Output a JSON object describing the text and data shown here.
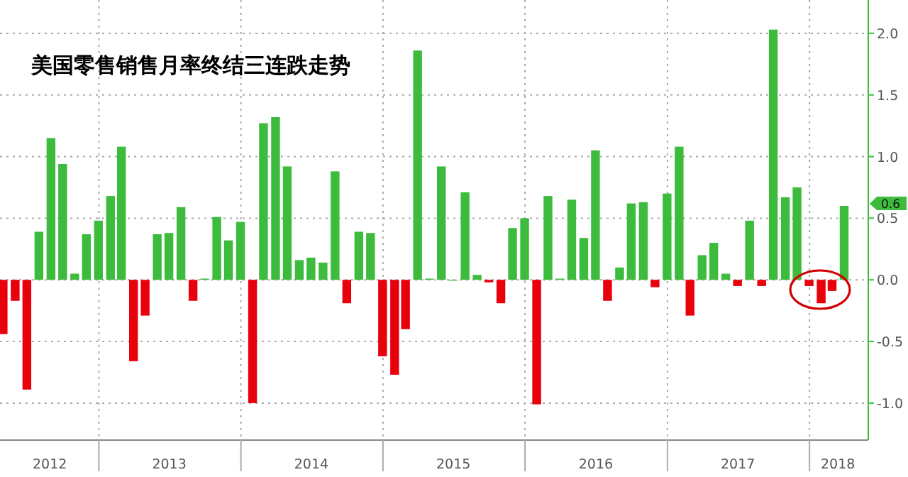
{
  "chart_data": {
    "type": "bar",
    "title": "美国零售销售月率终结三连跌走势",
    "x": [
      "2012-04-30",
      "2012-05-31",
      "2012-06-30",
      "2012-07-31",
      "2012-08-31",
      "2012-09-30",
      "2012-10-31",
      "2012-11-30",
      "2012-12-31",
      "2013-01-31",
      "2013-02-28",
      "2013-03-31",
      "2013-04-30",
      "2013-05-31",
      "2013-06-30",
      "2013-07-31",
      "2013-08-31",
      "2013-09-30",
      "2013-10-31",
      "2013-11-30",
      "2013-12-31",
      "2014-01-31",
      "2014-02-28",
      "2014-03-31",
      "2014-04-30",
      "2014-05-31",
      "2014-06-30",
      "2014-07-31",
      "2014-08-31",
      "2014-09-30",
      "2014-10-31",
      "2014-11-30",
      "2014-12-31",
      "2015-01-31",
      "2015-02-28",
      "2015-03-31",
      "2015-04-30",
      "2015-05-31",
      "2015-06-30",
      "2015-07-31",
      "2015-08-31",
      "2015-09-30",
      "2015-10-31",
      "2015-11-30",
      "2015-12-31",
      "2016-01-31",
      "2016-02-29",
      "2016-03-31",
      "2016-04-30",
      "2016-05-31",
      "2016-06-30",
      "2016-07-31",
      "2016-08-31",
      "2016-09-30",
      "2016-10-31",
      "2016-11-30",
      "2016-12-31",
      "2017-01-31",
      "2017-02-28",
      "2017-03-31",
      "2017-04-30",
      "2017-05-31",
      "2017-06-30",
      "2017-07-31",
      "2017-08-31",
      "2017-09-30",
      "2017-10-31",
      "2017-11-30",
      "2017-12-31",
      "2018-01-31",
      "2018-02-28",
      "2018-03-31"
    ],
    "values": [
      -0.44,
      -0.17,
      -0.89,
      0.39,
      1.15,
      0.94,
      0.05,
      0.37,
      0.48,
      0.68,
      1.08,
      -0.66,
      -0.29,
      0.37,
      0.38,
      0.59,
      -0.17,
      0.01,
      0.51,
      0.32,
      0.47,
      -1.0,
      1.27,
      1.32,
      0.92,
      0.16,
      0.18,
      0.14,
      0.88,
      -0.19,
      0.39,
      0.38,
      -0.62,
      -0.77,
      -0.4,
      1.86,
      0.01,
      0.92,
      0.0,
      0.71,
      0.04,
      -0.02,
      -0.19,
      0.42,
      0.5,
      -1.01,
      0.68,
      0.01,
      0.65,
      0.34,
      1.05,
      -0.17,
      0.1,
      0.62,
      0.63,
      -0.06,
      0.7,
      1.08,
      -0.29,
      0.2,
      0.3,
      0.05,
      -0.05,
      0.48,
      -0.05,
      2.03,
      0.67,
      0.75,
      -0.05,
      -0.19,
      -0.09,
      0.6
    ],
    "colors": [
      "#e8000b",
      "#e8000b",
      "#e8000b",
      "#3dbb3d",
      "#3dbb3d",
      "#3dbb3d",
      "#3dbb3d",
      "#3dbb3d",
      "#3dbb3d",
      "#3dbb3d",
      "#3dbb3d",
      "#e8000b",
      "#e8000b",
      "#3dbb3d",
      "#3dbb3d",
      "#3dbb3d",
      "#e8000b",
      "#3dbb3d",
      "#3dbb3d",
      "#3dbb3d",
      "#3dbb3d",
      "#e8000b",
      "#3dbb3d",
      "#3dbb3d",
      "#3dbb3d",
      "#3dbb3d",
      "#3dbb3d",
      "#3dbb3d",
      "#3dbb3d",
      "#e8000b",
      "#3dbb3d",
      "#3dbb3d",
      "#e8000b",
      "#e8000b",
      "#e8000b",
      "#3dbb3d",
      "#3dbb3d",
      "#3dbb3d",
      "#3dbb3d",
      "#3dbb3d",
      "#3dbb3d",
      "#e8000b",
      "#e8000b",
      "#3dbb3d",
      "#3dbb3d",
      "#e8000b",
      "#3dbb3d",
      "#3dbb3d",
      "#3dbb3d",
      "#3dbb3d",
      "#3dbb3d",
      "#e8000b",
      "#3dbb3d",
      "#3dbb3d",
      "#3dbb3d",
      "#e8000b",
      "#3dbb3d",
      "#3dbb3d",
      "#e8000b",
      "#3dbb3d",
      "#3dbb3d",
      "#3dbb3d",
      "#e8000b",
      "#3dbb3d",
      "#e8000b",
      "#3dbb3d",
      "#3dbb3d",
      "#3dbb3d",
      "#e8000b",
      "#e8000b",
      "#e8000b",
      "#3dbb3d"
    ],
    "xlim": [
      "2012-04-22",
      "2018-06-01"
    ],
    "xticks": [
      {
        "value": "2012-08-28",
        "label": "2012"
      },
      {
        "value": "2013-01-01",
        "label": null
      },
      {
        "value": "2013-07-01",
        "label": "2013"
      },
      {
        "value": "2014-01-01",
        "label": null
      },
      {
        "value": "2014-07-01",
        "label": "2014"
      },
      {
        "value": "2015-01-01",
        "label": null
      },
      {
        "value": "2015-07-01",
        "label": "2015"
      },
      {
        "value": "2016-01-01",
        "label": null
      },
      {
        "value": "2016-07-01",
        "label": "2016"
      },
      {
        "value": "2017-01-01",
        "label": null
      },
      {
        "value": "2017-07-01",
        "label": "2017"
      },
      {
        "value": "2018-01-01",
        "label": null
      },
      {
        "value": "2018-03-15",
        "label": "2018"
      }
    ],
    "ylim": [
      -1.3,
      2.27
    ],
    "yticks": [
      {
        "value": -1.0,
        "label": "-1.0"
      },
      {
        "value": -0.5,
        "label": "-0.5"
      },
      {
        "value": 0,
        "label": "0.0"
      },
      {
        "value": 0.5,
        "label": "0.5"
      },
      {
        "value": 1.0,
        "label": "1.0"
      },
      {
        "value": 1.5,
        "label": "1.5"
      },
      {
        "value": 2.0,
        "label": "2.0"
      }
    ],
    "grid": true,
    "annotations": [
      {
        "text": "0.6",
        "y": 0.6
      }
    ]
  }
}
